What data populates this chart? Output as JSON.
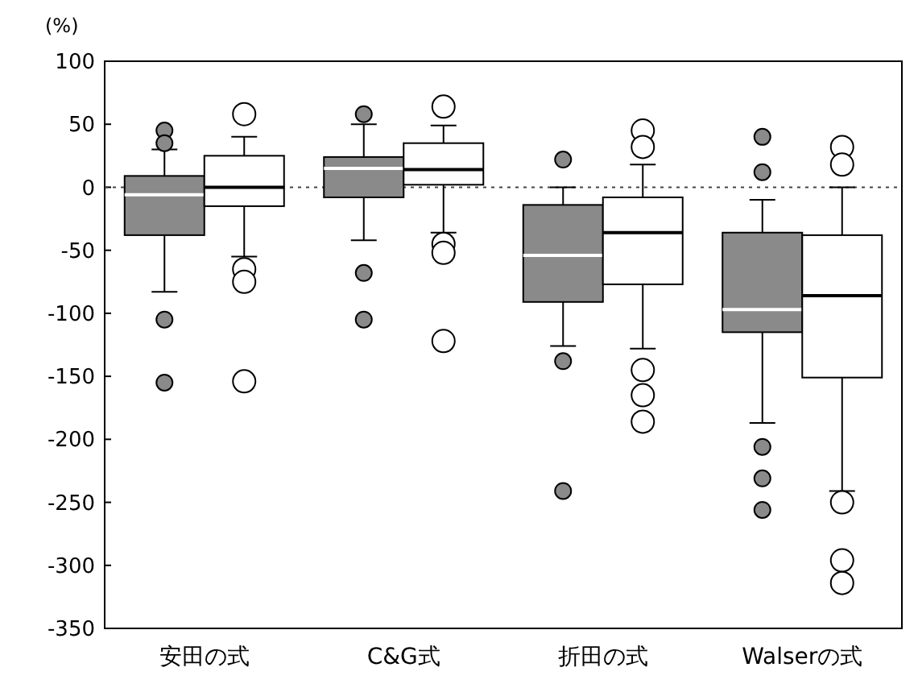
{
  "chart_data": {
    "type": "box",
    "ylabel": "(%)",
    "categories": [
      "安田の式",
      "C&G式",
      "折田の式",
      "Walserの式"
    ],
    "ylim": [
      -350,
      100
    ],
    "yticks": [
      100,
      50,
      0,
      -50,
      -100,
      -150,
      -200,
      -250,
      -300,
      -350
    ],
    "grid": false,
    "ref_lines": [
      {
        "axis": "y",
        "value": 0,
        "line_style": "dotted",
        "color": "#444444"
      }
    ],
    "series": [
      {
        "color": "#8a8a8a",
        "boxes": [
          {
            "low": -83,
            "q1": -38,
            "median": -6,
            "q3": 9,
            "high": 30,
            "outliers": [
              45,
              35,
              -105,
              -155
            ]
          },
          {
            "low": -42,
            "q1": -8,
            "median": 15,
            "q3": 24,
            "high": 50,
            "outliers": [
              58,
              -68,
              -105
            ]
          },
          {
            "low": -126,
            "q1": -91,
            "median": -54,
            "q3": -14,
            "high": 0,
            "outliers": [
              22,
              -138,
              -241
            ]
          },
          {
            "low": -187,
            "q1": -115,
            "median": -97,
            "q3": -36,
            "high": -10,
            "outliers": [
              40,
              12,
              -206,
              -231,
              -256
            ]
          }
        ]
      },
      {
        "color": "#ffffff",
        "boxes": [
          {
            "low": -55,
            "q1": -15,
            "median": 0,
            "q3": 25,
            "high": 40,
            "outliers": [
              58,
              -65,
              -75,
              -154
            ]
          },
          {
            "low": -36,
            "q1": 2,
            "median": 14,
            "q3": 35,
            "high": 49,
            "outliers": [
              64,
              -45,
              -52,
              -122
            ]
          },
          {
            "low": -128,
            "q1": -77,
            "median": -36,
            "q3": -8,
            "high": 18,
            "outliers": [
              45,
              32,
              -145,
              -165,
              -186
            ]
          },
          {
            "low": -241,
            "q1": -151,
            "median": -86,
            "q3": -38,
            "high": 0,
            "outliers": [
              32,
              18,
              -250,
              -296,
              -314
            ]
          }
        ]
      }
    ]
  }
}
